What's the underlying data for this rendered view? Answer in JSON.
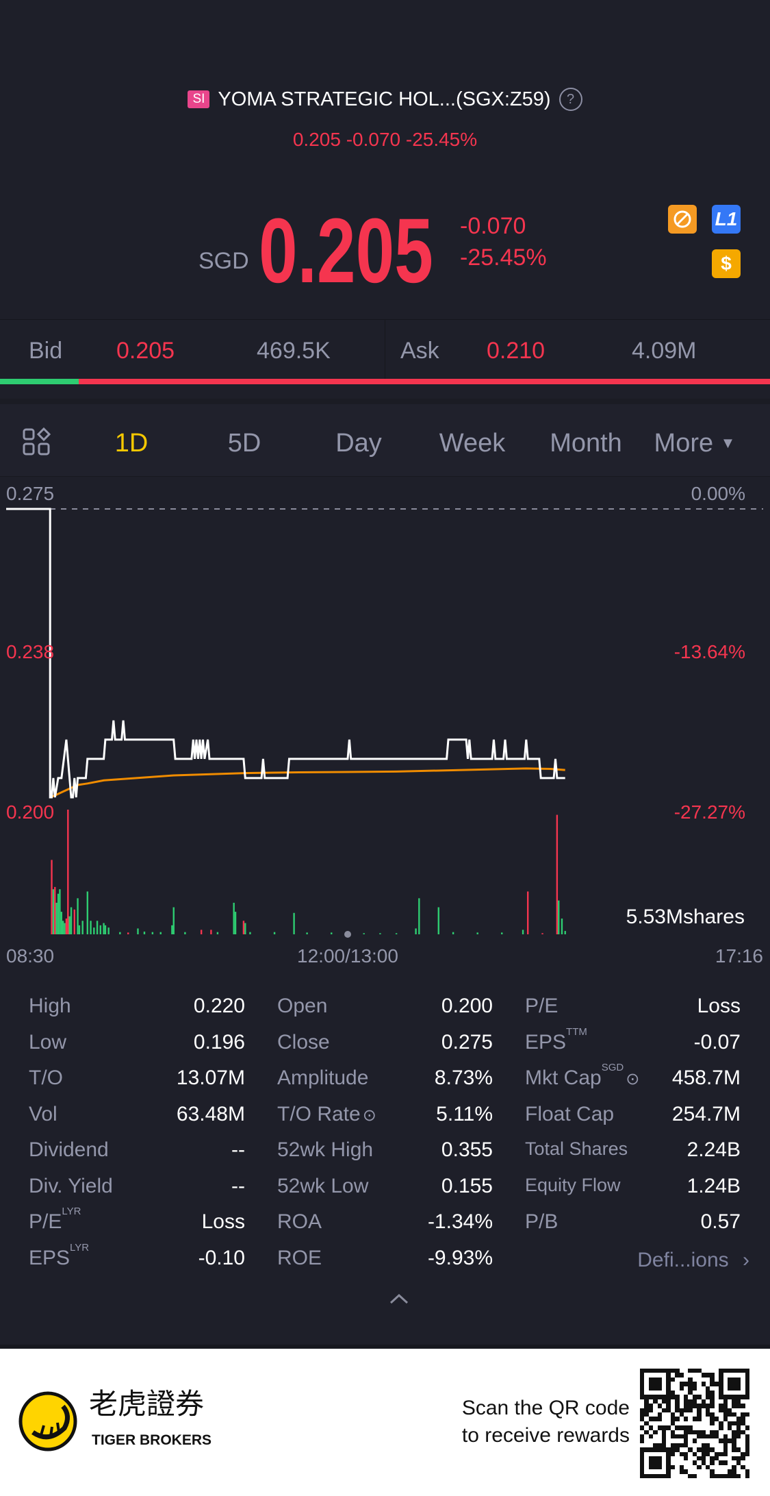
{
  "header": {
    "badge": "SI",
    "title": "YOMA STRATEGIC HOL...(SGX:Z59)",
    "help_icon": "question-circle-icon",
    "change_line": "0.205 -0.070 -25.45%"
  },
  "quote": {
    "currency": "SGD",
    "price": "0.205",
    "change": "-0.070",
    "change_pct": "-25.45%",
    "icons": [
      "no-short-icon",
      "level1-icon",
      "dollar-icon"
    ],
    "icon_colors": {
      "orange": "#f59a23",
      "blue": "#3478f6",
      "gold": "#f5a800"
    },
    "l1_label": "L1",
    "dollar_label": "$"
  },
  "bid_ask": {
    "bid_label": "Bid",
    "bid_price": "0.205",
    "bid_size": "469.5K",
    "ask_label": "Ask",
    "ask_price": "0.210",
    "ask_size": "4.09M",
    "bid_share_pct": 10.2
  },
  "tabs": {
    "items": [
      "1D",
      "5D",
      "Day",
      "Week",
      "Month",
      "More"
    ],
    "active": "1D",
    "grid_icon": "layout-grid-icon"
  },
  "colors": {
    "up": "#f5354f",
    "down": "#2ecc71",
    "accent": "#f5c800",
    "avg": "#f08c00",
    "bg": "#1e1f29"
  },
  "chart_data": {
    "type": "line",
    "y_labels_left": [
      "0.275",
      "0.238",
      "0.200"
    ],
    "y_labels_right": [
      "0.00%",
      "-13.64%",
      "-27.27%"
    ],
    "x_labels": [
      "08:30",
      "12:00/13:00",
      "17:16"
    ],
    "ylim": [
      0.2,
      0.275
    ],
    "prev_close": 0.275,
    "volume_label": "5.53Mshares",
    "volume_max_millions": 5.53,
    "series": [
      {
        "kind": "price",
        "points": [
          [
            "08:30",
            0.275
          ],
          [
            "08:57",
            0.275
          ],
          [
            "08:57",
            0.2
          ],
          [
            "08:58",
            0.2
          ],
          [
            "08:59",
            0.205
          ],
          [
            "09:00",
            0.2
          ],
          [
            "09:02",
            0.205
          ],
          [
            "09:04",
            0.205
          ],
          [
            "09:07",
            0.215
          ],
          [
            "09:10",
            0.2
          ],
          [
            "09:11",
            0.2
          ],
          [
            "09:12",
            0.205
          ],
          [
            "09:13",
            0.2
          ],
          [
            "09:14",
            0.205
          ],
          [
            "09:19",
            0.205
          ],
          [
            "09:20",
            0.21
          ],
          [
            "09:30",
            0.21
          ],
          [
            "09:31",
            0.215
          ],
          [
            "09:35",
            0.215
          ],
          [
            "09:36",
            0.22
          ],
          [
            "09:37",
            0.215
          ],
          [
            "09:41",
            0.215
          ],
          [
            "09:42",
            0.22
          ],
          [
            "09:43",
            0.215
          ],
          [
            "10:13",
            0.215
          ],
          [
            "10:14",
            0.21
          ],
          [
            "10:24",
            0.21
          ],
          [
            "10:25",
            0.215
          ],
          [
            "10:26",
            0.21
          ],
          [
            "10:27",
            0.215
          ],
          [
            "10:28",
            0.21
          ],
          [
            "10:29",
            0.215
          ],
          [
            "10:30",
            0.21
          ],
          [
            "10:31",
            0.215
          ],
          [
            "10:32",
            0.21
          ],
          [
            "10:34",
            0.215
          ],
          [
            "10:35",
            0.21
          ],
          [
            "10:56",
            0.21
          ],
          [
            "10:57",
            0.205
          ],
          [
            "11:07",
            0.205
          ],
          [
            "11:08",
            0.21
          ],
          [
            "11:09",
            0.205
          ],
          [
            "11:23",
            0.205
          ],
          [
            "11:24",
            0.21
          ],
          [
            "13:00",
            0.21
          ],
          [
            "13:01",
            0.215
          ],
          [
            "13:02",
            0.21
          ],
          [
            "14:01",
            0.21
          ],
          [
            "14:02",
            0.215
          ],
          [
            "14:13",
            0.215
          ],
          [
            "14:14",
            0.21
          ],
          [
            "14:15",
            0.215
          ],
          [
            "14:16",
            0.21
          ],
          [
            "14:29",
            0.21
          ],
          [
            "14:30",
            0.215
          ],
          [
            "14:31",
            0.21
          ],
          [
            "14:36",
            0.21
          ],
          [
            "14:37",
            0.215
          ],
          [
            "14:38",
            0.21
          ],
          [
            "14:49",
            0.21
          ],
          [
            "14:50",
            0.215
          ],
          [
            "14:51",
            0.21
          ],
          [
            "14:58",
            0.21
          ],
          [
            "14:59",
            0.205
          ],
          [
            "15:07",
            0.205
          ],
          [
            "15:08",
            0.21
          ],
          [
            "15:09",
            0.205
          ],
          [
            "15:14",
            0.205
          ]
        ]
      },
      {
        "kind": "average",
        "points": [
          [
            "08:57",
            0.2
          ],
          [
            "09:00",
            0.2005
          ],
          [
            "09:05",
            0.2015
          ],
          [
            "09:14",
            0.2032
          ],
          [
            "09:20",
            0.2036
          ],
          [
            "09:30",
            0.2044
          ],
          [
            "09:50",
            0.205
          ],
          [
            "10:13",
            0.2057
          ],
          [
            "10:57",
            0.2063
          ],
          [
            "11:30",
            0.2065
          ],
          [
            "13:30",
            0.2067
          ],
          [
            "14:00",
            0.207
          ],
          [
            "14:50",
            0.2075
          ],
          [
            "15:05",
            0.2074
          ],
          [
            "15:14",
            0.2071
          ]
        ]
      }
    ],
    "volume": [
      [
        "08:58",
        3.3,
        "up"
      ],
      [
        "08:59",
        2.0,
        "down"
      ],
      [
        "09:00",
        2.1,
        "up"
      ],
      [
        "09:01",
        1.4,
        "down"
      ],
      [
        "09:02",
        1.8,
        "down"
      ],
      [
        "09:03",
        2.0,
        "down"
      ],
      [
        "09:04",
        1.0,
        "down"
      ],
      [
        "09:05",
        0.6,
        "down"
      ],
      [
        "09:06",
        0.5,
        "down"
      ],
      [
        "09:07",
        0.7,
        "up"
      ],
      [
        "09:08",
        5.53,
        "up"
      ],
      [
        "09:09",
        0.8,
        "down"
      ],
      [
        "09:10",
        1.2,
        "down"
      ],
      [
        "09:12",
        1.1,
        "up"
      ],
      [
        "09:14",
        1.6,
        "down"
      ],
      [
        "09:15",
        0.4,
        "down"
      ],
      [
        "09:17",
        0.6,
        "down"
      ],
      [
        "09:20",
        1.9,
        "down"
      ],
      [
        "09:22",
        0.6,
        "down"
      ],
      [
        "09:24",
        0.3,
        "down"
      ],
      [
        "09:26",
        0.6,
        "down"
      ],
      [
        "09:28",
        0.4,
        "down"
      ],
      [
        "09:30",
        0.5,
        "down"
      ],
      [
        "09:31",
        0.4,
        "down"
      ],
      [
        "09:33",
        0.3,
        "down"
      ],
      [
        "09:40",
        0.1,
        "down"
      ],
      [
        "09:45",
        0.08,
        "up"
      ],
      [
        "09:51",
        0.26,
        "down"
      ],
      [
        "09:55",
        0.12,
        "down"
      ],
      [
        "10:00",
        0.1,
        "down"
      ],
      [
        "10:05",
        0.1,
        "down"
      ],
      [
        "10:12",
        0.4,
        "down"
      ],
      [
        "10:13",
        1.2,
        "down"
      ],
      [
        "10:20",
        0.1,
        "down"
      ],
      [
        "10:30",
        0.2,
        "up"
      ],
      [
        "10:36",
        0.2,
        "up"
      ],
      [
        "10:40",
        0.1,
        "down"
      ],
      [
        "10:50",
        1.4,
        "down"
      ],
      [
        "10:51",
        1.0,
        "down"
      ],
      [
        "10:56",
        0.6,
        "up"
      ],
      [
        "10:57",
        0.5,
        "down"
      ],
      [
        "11:00",
        0.1,
        "down"
      ],
      [
        "11:15",
        0.1,
        "down"
      ],
      [
        "11:27",
        0.95,
        "down"
      ],
      [
        "11:35",
        0.08,
        "down"
      ],
      [
        "11:50",
        0.08,
        "down"
      ],
      [
        "13:10",
        0.05,
        "down"
      ],
      [
        "13:20",
        0.05,
        "down"
      ],
      [
        "13:30",
        0.05,
        "down"
      ],
      [
        "13:42",
        0.26,
        "down"
      ],
      [
        "13:44",
        1.6,
        "down"
      ],
      [
        "13:56",
        1.2,
        "down"
      ],
      [
        "14:05",
        0.1,
        "down"
      ],
      [
        "14:20",
        0.08,
        "down"
      ],
      [
        "14:35",
        0.08,
        "down"
      ],
      [
        "14:48",
        0.2,
        "down"
      ],
      [
        "14:51",
        1.9,
        "up"
      ],
      [
        "15:00",
        0.05,
        "up"
      ],
      [
        "15:09",
        5.3,
        "up"
      ],
      [
        "15:10",
        1.5,
        "down"
      ],
      [
        "15:12",
        0.7,
        "down"
      ],
      [
        "15:14",
        0.15,
        "down"
      ]
    ]
  },
  "stats": {
    "col1": [
      {
        "label": "High",
        "value": "0.220"
      },
      {
        "label": "Low",
        "value": "0.196"
      },
      {
        "label": "T/O",
        "value": "13.07M"
      },
      {
        "label": "Vol",
        "value": "63.48M"
      },
      {
        "label": "Dividend",
        "value": "--"
      },
      {
        "label": "Div. Yield",
        "value": "--"
      },
      {
        "label": "P/E",
        "sup": "LYR",
        "value": "Loss"
      },
      {
        "label": "EPS",
        "sup": "LYR",
        "value": "-0.10"
      }
    ],
    "col2": [
      {
        "label": "Open",
        "value": "0.200"
      },
      {
        "label": "Close",
        "value": "0.275"
      },
      {
        "label": "Amplitude",
        "value": "8.73%"
      },
      {
        "label": "T/O Rate",
        "value": "5.11%",
        "info": true
      },
      {
        "label": "52wk High",
        "value": "0.355"
      },
      {
        "label": "52wk Low",
        "value": "0.155"
      },
      {
        "label": "ROA",
        "value": "-1.34%"
      },
      {
        "label": "ROE",
        "value": "-9.93%"
      }
    ],
    "col3": [
      {
        "label": "P/E",
        "value": "Loss"
      },
      {
        "label": "EPS",
        "sup": "TTM",
        "value": "-0.07"
      },
      {
        "label": "Mkt Cap",
        "sup": "SGD",
        "value": "458.7M",
        "info": true
      },
      {
        "label": "Float Cap",
        "value": "254.7M"
      },
      {
        "label": "Total Shares",
        "value": "2.24B",
        "small": true
      },
      {
        "label": "Equity Flow",
        "value": "1.24B",
        "small": true
      },
      {
        "label": "P/B",
        "value": "0.57"
      }
    ],
    "definitions_link": "Defi...ions"
  },
  "footer": {
    "brand_cn": "老虎證券",
    "brand_en": "TIGER BROKERS",
    "scan_line1": "Scan the QR code",
    "scan_line2": "to receive rewards"
  }
}
